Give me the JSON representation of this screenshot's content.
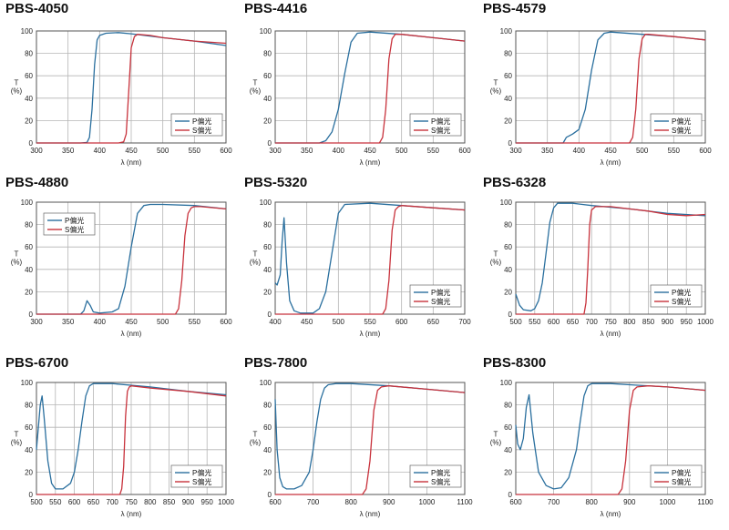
{
  "ylabel": "T\n(%)",
  "xlabel": "λ (nm)",
  "colors": {
    "p": "#2a6f9e",
    "s": "#c8323c",
    "grid": "#b5b5b5",
    "frame": "#555555"
  },
  "chart_data": [
    {
      "type": "line",
      "title": "PBS-4050",
      "xlim": [
        300,
        600
      ],
      "ylim": [
        0,
        100
      ],
      "xticks": [
        300,
        350,
        400,
        450,
        500,
        550,
        600
      ],
      "yticks": [
        0,
        20,
        40,
        60,
        80,
        100
      ],
      "legend": {
        "position": "bottom-right"
      },
      "series": [
        {
          "name": "P偏光",
          "x": [
            300,
            370,
            380,
            384,
            388,
            392,
            396,
            400,
            410,
            430,
            450,
            500,
            550,
            600
          ],
          "y": [
            0,
            0,
            0.5,
            5,
            30,
            70,
            92,
            96,
            98,
            98.5,
            97.5,
            94,
            91,
            87
          ]
        },
        {
          "name": "S偏光",
          "x": [
            300,
            430,
            438,
            442,
            446,
            450,
            455,
            460,
            480,
            500,
            550,
            600
          ],
          "y": [
            0,
            0,
            1,
            8,
            45,
            85,
            95,
            97,
            96,
            94,
            91,
            89
          ]
        }
      ]
    },
    {
      "type": "line",
      "title": "PBS-4416",
      "xlim": [
        300,
        600
      ],
      "ylim": [
        0,
        100
      ],
      "xticks": [
        300,
        350,
        400,
        450,
        500,
        550,
        600
      ],
      "yticks": [
        0,
        20,
        40,
        60,
        80,
        100
      ],
      "legend": {
        "position": "bottom-right"
      },
      "series": [
        {
          "name": "P偏光",
          "x": [
            300,
            370,
            380,
            390,
            400,
            410,
            420,
            430,
            450,
            500,
            550,
            600
          ],
          "y": [
            0,
            0,
            2,
            10,
            30,
            62,
            90,
            98,
            99,
            97,
            94,
            91
          ]
        },
        {
          "name": "S偏光",
          "x": [
            300,
            465,
            470,
            475,
            480,
            485,
            490,
            500,
            550,
            600
          ],
          "y": [
            0,
            0,
            5,
            30,
            75,
            93,
            97,
            97,
            94,
            91
          ]
        }
      ]
    },
    {
      "type": "line",
      "title": "PBS-4579",
      "xlim": [
        300,
        600
      ],
      "ylim": [
        0,
        100
      ],
      "xticks": [
        300,
        350,
        400,
        450,
        500,
        550,
        600
      ],
      "yticks": [
        0,
        20,
        40,
        60,
        80,
        100
      ],
      "legend": {
        "position": "bottom-right"
      },
      "series": [
        {
          "name": "P偏光",
          "x": [
            300,
            375,
            380,
            390,
            400,
            410,
            420,
            430,
            440,
            450,
            500,
            550,
            600
          ],
          "y": [
            0,
            0,
            5,
            8,
            12,
            30,
            65,
            92,
            98,
            99,
            97,
            95,
            92
          ]
        },
        {
          "name": "S偏光",
          "x": [
            300,
            480,
            485,
            490,
            495,
            500,
            505,
            510,
            550,
            600
          ],
          "y": [
            0,
            0,
            5,
            30,
            75,
            93,
            97,
            97,
            95,
            92
          ]
        }
      ]
    },
    {
      "type": "line",
      "title": "PBS-4880",
      "xlim": [
        300,
        600
      ],
      "ylim": [
        0,
        100
      ],
      "xticks": [
        300,
        350,
        400,
        450,
        500,
        550,
        600
      ],
      "yticks": [
        0,
        20,
        40,
        60,
        80,
        100
      ],
      "legend": {
        "position": "top-left"
      },
      "series": [
        {
          "name": "P偏光",
          "x": [
            300,
            370,
            375,
            380,
            385,
            390,
            400,
            420,
            430,
            440,
            450,
            460,
            470,
            480,
            500,
            550,
            600
          ],
          "y": [
            0,
            0,
            3,
            12,
            8,
            2,
            1,
            2,
            5,
            25,
            60,
            90,
            97,
            98,
            98,
            97,
            94
          ]
        },
        {
          "name": "S偏光",
          "x": [
            300,
            520,
            525,
            530,
            535,
            540,
            545,
            550,
            560,
            600
          ],
          "y": [
            0,
            0,
            5,
            30,
            70,
            90,
            95,
            96,
            96,
            94
          ]
        }
      ]
    },
    {
      "type": "line",
      "title": "PBS-5320",
      "xlim": [
        400,
        700
      ],
      "ylim": [
        0,
        100
      ],
      "xticks": [
        400,
        450,
        500,
        550,
        600,
        650,
        700
      ],
      "yticks": [
        0,
        20,
        40,
        60,
        80,
        100
      ],
      "legend": {
        "position": "bottom-right"
      },
      "series": [
        {
          "name": "P偏光",
          "x": [
            400,
            403,
            408,
            411,
            414,
            418,
            423,
            430,
            440,
            460,
            470,
            480,
            490,
            500,
            510,
            550,
            600,
            650,
            700
          ],
          "y": [
            28,
            26,
            35,
            65,
            86,
            45,
            12,
            3,
            1,
            1,
            5,
            20,
            55,
            90,
            98,
            99,
            97,
            95,
            93
          ]
        },
        {
          "name": "S偏光",
          "x": [
            400,
            570,
            575,
            580,
            585,
            590,
            595,
            600,
            650,
            700
          ],
          "y": [
            0,
            0,
            5,
            30,
            75,
            93,
            96,
            97,
            95,
            93
          ]
        }
      ]
    },
    {
      "type": "line",
      "title": "PBS-6328",
      "xlim": [
        500,
        1000
      ],
      "ylim": [
        0,
        100
      ],
      "xticks": [
        500,
        550,
        600,
        650,
        700,
        750,
        800,
        850,
        900,
        950,
        1000
      ],
      "yticks": [
        0,
        20,
        40,
        60,
        80,
        100
      ],
      "legend": {
        "position": "bottom-right"
      },
      "series": [
        {
          "name": "P偏光",
          "x": [
            500,
            510,
            520,
            540,
            550,
            560,
            570,
            580,
            590,
            600,
            610,
            620,
            650,
            700,
            800,
            900,
            1000
          ],
          "y": [
            18,
            8,
            4,
            3,
            5,
            12,
            28,
            55,
            82,
            95,
            99,
            99,
            99,
            97,
            94,
            90,
            88
          ]
        },
        {
          "name": "S偏光",
          "x": [
            500,
            680,
            685,
            690,
            695,
            700,
            710,
            750,
            800,
            850,
            900,
            950,
            1000
          ],
          "y": [
            0,
            0,
            10,
            40,
            80,
            93,
            96,
            96,
            94,
            92,
            89,
            88,
            89
          ]
        }
      ]
    },
    {
      "type": "line",
      "title": "PBS-6700",
      "xlim": [
        500,
        1000
      ],
      "ylim": [
        0,
        100
      ],
      "xticks": [
        500,
        550,
        600,
        650,
        700,
        750,
        800,
        850,
        900,
        950,
        1000
      ],
      "yticks": [
        0,
        20,
        40,
        60,
        80,
        100
      ],
      "legend": {
        "position": "bottom-right"
      },
      "series": [
        {
          "name": "P偏光",
          "x": [
            500,
            505,
            510,
            515,
            520,
            530,
            540,
            550,
            570,
            590,
            600,
            610,
            620,
            630,
            640,
            650,
            700,
            800,
            900,
            1000
          ],
          "y": [
            40,
            60,
            80,
            88,
            70,
            30,
            10,
            5,
            5,
            10,
            20,
            40,
            65,
            88,
            97,
            99,
            99,
            96,
            92,
            89
          ]
        },
        {
          "name": "S偏光",
          "x": [
            500,
            720,
            725,
            730,
            735,
            740,
            745,
            750,
            800,
            900,
            950,
            1000
          ],
          "y": [
            0,
            0,
            5,
            25,
            70,
            92,
            96,
            97,
            95,
            92,
            90,
            88
          ]
        }
      ]
    },
    {
      "type": "line",
      "title": "PBS-7800",
      "xlim": [
        600,
        1100
      ],
      "ylim": [
        0,
        100
      ],
      "xticks": [
        600,
        700,
        800,
        900,
        1000,
        1100
      ],
      "yticks": [
        0,
        20,
        40,
        60,
        80,
        100
      ],
      "legend": {
        "position": "bottom-right"
      },
      "series": [
        {
          "name": "P偏光",
          "x": [
            600,
            605,
            612,
            620,
            630,
            650,
            670,
            690,
            700,
            710,
            720,
            730,
            740,
            760,
            800,
            900,
            1000,
            1100
          ],
          "y": [
            85,
            40,
            15,
            7,
            5,
            5,
            8,
            20,
            40,
            65,
            85,
            95,
            98,
            99,
            99,
            97,
            94,
            91
          ]
        },
        {
          "name": "S偏光",
          "x": [
            600,
            830,
            840,
            850,
            860,
            870,
            880,
            900,
            1000,
            1100
          ],
          "y": [
            0,
            0,
            5,
            30,
            75,
            93,
            96,
            97,
            94,
            91
          ]
        }
      ]
    },
    {
      "type": "line",
      "title": "PBS-8300",
      "xlim": [
        600,
        1100
      ],
      "ylim": [
        0,
        100
      ],
      "xticks": [
        600,
        700,
        800,
        900,
        1000,
        1100
      ],
      "yticks": [
        0,
        20,
        40,
        60,
        80,
        100
      ],
      "legend": {
        "position": "bottom-right"
      },
      "series": [
        {
          "name": "P偏光",
          "x": [
            600,
            605,
            612,
            620,
            628,
            635,
            645,
            660,
            680,
            700,
            720,
            740,
            760,
            770,
            780,
            790,
            800,
            850,
            900,
            1000,
            1100
          ],
          "y": [
            62,
            45,
            40,
            50,
            78,
            89,
            55,
            20,
            8,
            5,
            6,
            15,
            40,
            65,
            88,
            97,
            99,
            99,
            98,
            96,
            93
          ]
        },
        {
          "name": "S偏光",
          "x": [
            600,
            870,
            880,
            890,
            900,
            910,
            920,
            950,
            1000,
            1100
          ],
          "y": [
            0,
            0,
            5,
            30,
            75,
            93,
            96,
            97,
            96,
            93
          ]
        }
      ]
    }
  ]
}
